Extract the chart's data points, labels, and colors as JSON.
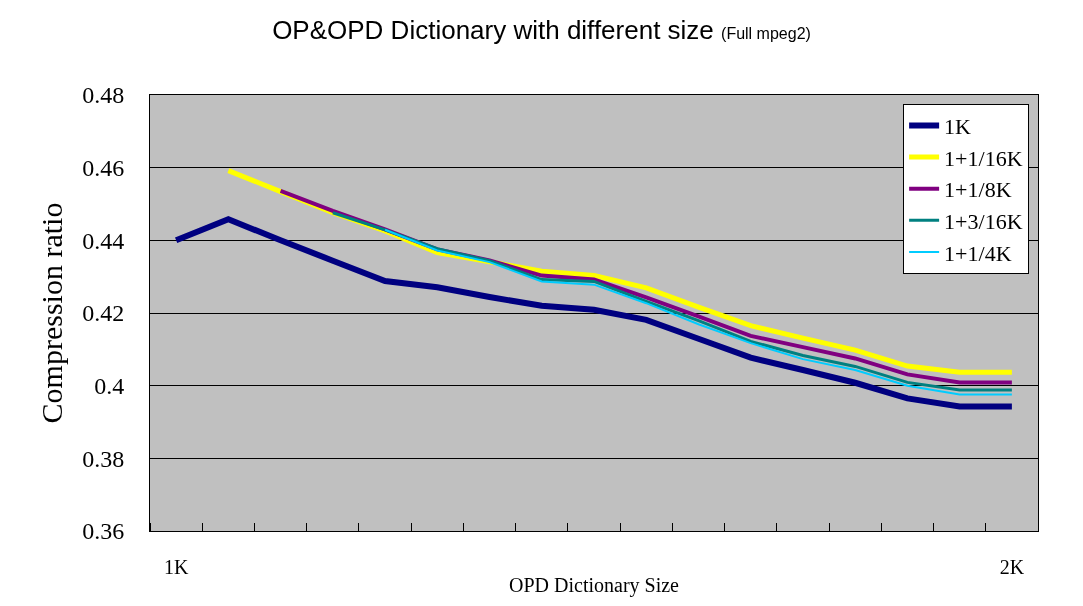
{
  "chart_data": {
    "type": "line",
    "title": "OP&OPD Dictionary with different size",
    "subtitle": "(Full mpeg2)",
    "xlabel": "OPD Dictionary Size",
    "ylabel": "Compression ratio",
    "categories": [
      "1K",
      null,
      null,
      null,
      null,
      null,
      null,
      null,
      null,
      null,
      null,
      null,
      null,
      null,
      null,
      null,
      "2K"
    ],
    "series": [
      {
        "name": "1K",
        "color": "#000080",
        "values": [
          0.44,
          0.4458,
          0.44,
          0.4344,
          0.4288,
          0.4271,
          0.4244,
          0.422,
          0.4209,
          0.4181,
          0.4129,
          0.4077,
          0.4043,
          0.4008,
          0.3965,
          0.3943,
          0.3943
        ]
      },
      {
        "name": "1+1/16K",
        "color": "#ffff00",
        "values": [
          null,
          0.4592,
          0.4534,
          0.4476,
          0.4426,
          0.4366,
          0.4341,
          0.4315,
          0.4303,
          0.4269,
          0.4216,
          0.4165,
          0.4131,
          0.4098,
          0.4054,
          0.4037,
          0.4037
        ]
      },
      {
        "name": "1+1/8K",
        "color": "#800080",
        "values": [
          null,
          null,
          0.4536,
          0.4481,
          0.443,
          0.4375,
          0.4345,
          0.4303,
          0.4292,
          0.4243,
          0.4191,
          0.4137,
          0.4106,
          0.4075,
          0.4031,
          0.4009,
          0.4009
        ]
      },
      {
        "name": "1+3/16K",
        "color": "#008080",
        "values": [
          null,
          null,
          null,
          0.4476,
          0.4429,
          0.4377,
          0.4344,
          0.4292,
          0.4287,
          0.4232,
          0.4179,
          0.4122,
          0.4083,
          0.4053,
          0.4009,
          0.3988,
          0.3988
        ]
      },
      {
        "name": "1+1/4K",
        "color": "#00ccff",
        "values": [
          null,
          null,
          null,
          null,
          0.4429,
          0.4372,
          0.434,
          0.4287,
          0.4278,
          0.4227,
          0.4169,
          0.4117,
          0.4073,
          0.4043,
          0.4,
          0.3976,
          0.3976
        ]
      }
    ],
    "ylim": [
      0.36,
      0.48
    ],
    "yticks": [
      0.36,
      0.38,
      0.4,
      0.42,
      0.44,
      0.46,
      0.48
    ],
    "grid": "y",
    "legend": "top right",
    "marker": "none",
    "line_style": "solid"
  }
}
